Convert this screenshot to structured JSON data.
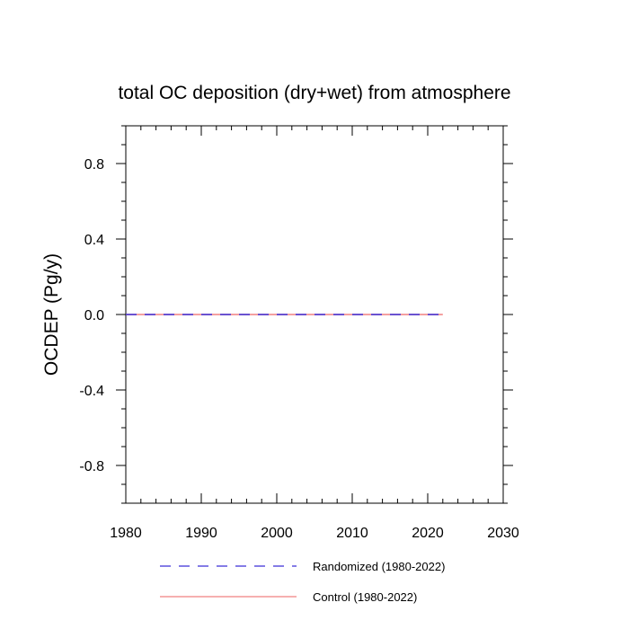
{
  "chart_data": {
    "type": "line",
    "title": "total OC deposition (dry+wet) from atmosphere",
    "xlabel": "",
    "ylabel": "OCDEP  (Pg/y)",
    "xlim": [
      1980,
      2030
    ],
    "ylim": [
      -1.0,
      1.0
    ],
    "x_ticks": [
      1980,
      1990,
      2000,
      2010,
      2020,
      2030
    ],
    "y_ticks": [
      -0.8,
      -0.4,
      0.0,
      0.4,
      0.8
    ],
    "x_tick_labels": [
      "1980",
      "1990",
      "2000",
      "2010",
      "2020",
      "2030"
    ],
    "y_tick_labels": [
      "-0.8",
      "-0.4",
      "0.0",
      "0.4",
      "0.8"
    ],
    "grid": false,
    "legend_position": "bottom",
    "series": [
      {
        "name": "Randomized (1980-2022)",
        "color": "#3b2fd6",
        "dash": "dashed",
        "x": [
          1980,
          2022
        ],
        "y": [
          0.0,
          0.0
        ]
      },
      {
        "name": "Control (1980-2022)",
        "color": "#f08080",
        "dash": "solid",
        "x": [
          1980,
          2022
        ],
        "y": [
          0.0,
          0.0
        ]
      }
    ]
  }
}
